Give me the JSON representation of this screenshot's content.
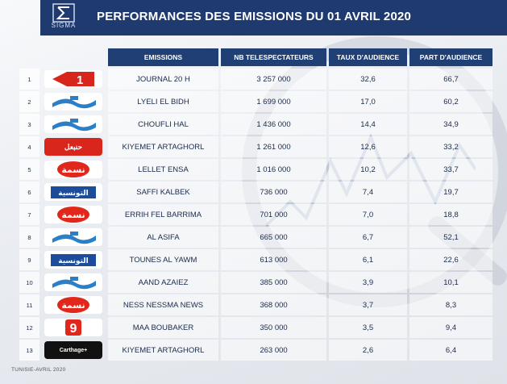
{
  "logo_text": "SIGMA",
  "title": "PERFORMANCES DES EMISSIONS DU 01 AVRIL 2020",
  "headers": {
    "emissions": "EMISSIONS",
    "viewers": "NB TELESPECTATEURS",
    "rate": "TAUX D'AUDIENCE",
    "share": "PART D'AUDIENCE"
  },
  "rows": [
    {
      "rank": "1",
      "channel": "watania1-logo",
      "name": "JOURNAL 20 H",
      "viewers": "3 257 000",
      "rate": "32,6",
      "share": "66,7"
    },
    {
      "rank": "2",
      "channel": "watania2-logo",
      "name": "LYELI EL BIDH",
      "viewers": "1 699 000",
      "rate": "17,0",
      "share": "60,2"
    },
    {
      "rank": "3",
      "channel": "watania2-logo",
      "name": "CHOUFLI HAL",
      "viewers": "1 436 000",
      "rate": "14,4",
      "share": "34,9"
    },
    {
      "rank": "4",
      "channel": "hannibal-logo",
      "name": "KIYEMET ARTAGHORL",
      "viewers": "1 261 000",
      "rate": "12,6",
      "share": "33,2"
    },
    {
      "rank": "5",
      "channel": "nessma-logo",
      "name": "LELLET ENSA",
      "viewers": "1 016 000",
      "rate": "10,2",
      "share": "33,7"
    },
    {
      "rank": "6",
      "channel": "attessia-logo",
      "name": "SAFFI KALBEK",
      "viewers": "736 000",
      "rate": "7,4",
      "share": "19,7"
    },
    {
      "rank": "7",
      "channel": "nessma-logo",
      "name": "ERRIH FEL BARRIMA",
      "viewers": "701 000",
      "rate": "7,0",
      "share": "18,8"
    },
    {
      "rank": "8",
      "channel": "watania2-logo",
      "name": "AL ASIFA",
      "viewers": "665 000",
      "rate": "6,7",
      "share": "52,1"
    },
    {
      "rank": "9",
      "channel": "attessia-logo",
      "name": "TOUNES AL YAWM",
      "viewers": "613 000",
      "rate": "6,1",
      "share": "22,6"
    },
    {
      "rank": "10",
      "channel": "watania2-logo",
      "name": "AAND AZAIEZ",
      "viewers": "385 000",
      "rate": "3,9",
      "share": "10,1"
    },
    {
      "rank": "11",
      "channel": "nessma-logo",
      "name": "NESS NESSMA NEWS",
      "viewers": "368 000",
      "rate": "3,7",
      "share": "8,3"
    },
    {
      "rank": "12",
      "channel": "elhiwar-logo",
      "name": "MAA BOUBAKER",
      "viewers": "350 000",
      "rate": "3,5",
      "share": "9,4"
    },
    {
      "rank": "13",
      "channel": "carthage-logo",
      "name": "KIYEMET ARTAGHORL",
      "viewers": "263 000",
      "rate": "2,6",
      "share": "6,4"
    }
  ],
  "channel_logos": {
    "hannibal_text": "حنبعل",
    "attessia_text": "التونسية",
    "carthage_text": "Carthage+",
    "nessma_text": "نسمة",
    "elhiwar_text": "9",
    "watania1_text": "1"
  },
  "footer": "TUNISIE-AVRIL 2020",
  "colors": {
    "header_bg": "#1e3a6e",
    "column_header_bg": "#203f74",
    "watania_red": "#d9261c",
    "watania_blue": "#2a7fc9"
  }
}
